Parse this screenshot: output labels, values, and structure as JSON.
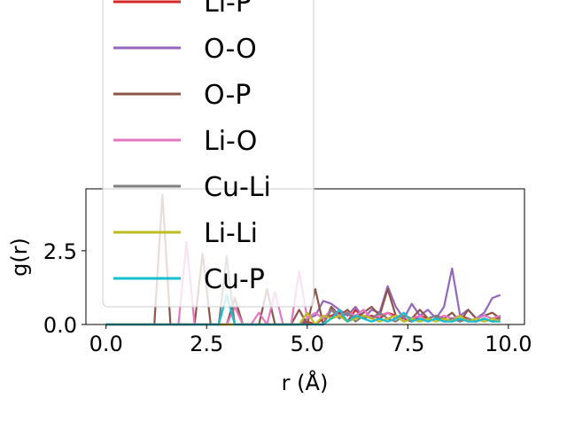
{
  "chart_data": {
    "type": "line",
    "title": "",
    "xlabel": "r (Å)",
    "ylabel": "g(r)",
    "xlim": [
      -0.5,
      10.4
    ],
    "ylim": [
      0,
      4.6
    ],
    "xticks": [
      0.0,
      2.5,
      5.0,
      7.5,
      10.0
    ],
    "xtick_labels": [
      "0.0",
      "2.5",
      "5.0",
      "7.5",
      "10.0"
    ],
    "yticks": [
      0.0,
      2.5
    ],
    "ytick_labels": [
      "0.0",
      "2.5"
    ],
    "grid": false,
    "legend_position": "upper-left",
    "x": [
      0,
      0.2,
      0.4,
      0.6,
      0.8,
      1.0,
      1.2,
      1.4,
      1.6,
      1.8,
      2.0,
      2.2,
      2.4,
      2.6,
      2.8,
      3.0,
      3.2,
      3.4,
      3.6,
      3.8,
      4.0,
      4.2,
      4.4,
      4.6,
      4.8,
      5.0,
      5.2,
      5.4,
      5.6,
      5.8,
      6.0,
      6.2,
      6.4,
      6.6,
      6.8,
      7.0,
      7.2,
      7.4,
      7.6,
      7.8,
      8.0,
      8.2,
      8.4,
      8.6,
      8.8,
      9.0,
      9.2,
      9.4,
      9.6,
      9.8
    ],
    "series": [
      {
        "name": "Li-P",
        "color": "#d62728",
        "values": [
          0,
          0,
          0,
          0,
          0,
          0,
          0,
          0,
          0,
          0,
          0,
          0,
          0,
          0,
          0,
          0,
          0,
          0,
          0,
          0,
          0,
          0,
          0,
          0,
          0,
          0.1,
          0,
          0.2,
          0.3,
          0.4,
          0.1,
          0.5,
          0.2,
          0.3,
          0.2,
          0.4,
          0.3,
          0.2,
          0.1,
          0.3,
          0.2,
          0.3,
          0.2,
          0.1,
          0.3,
          0.2,
          0.1,
          0.2,
          0.1,
          0.3
        ]
      },
      {
        "name": "O-O",
        "color": "#9467bd",
        "values": [
          0,
          0,
          0,
          0,
          0,
          0,
          0,
          0,
          0,
          0,
          0,
          0,
          0,
          0,
          0,
          0,
          0,
          0,
          0,
          0,
          0,
          0,
          0,
          0,
          0,
          0.2,
          0.3,
          0.8,
          0.7,
          0.5,
          0.3,
          0.6,
          0.2,
          0.5,
          0.4,
          1.3,
          0.6,
          0.2,
          0.7,
          0.3,
          0.5,
          0.2,
          0.6,
          1.9,
          0.3,
          0.5,
          0.2,
          0.4,
          0.9,
          1.0
        ]
      },
      {
        "name": "O-P",
        "color": "#8c564b",
        "values": [
          0,
          0,
          0,
          0,
          0,
          0,
          0,
          4.4,
          0,
          0,
          0,
          0,
          2.4,
          0,
          0,
          0,
          0.9,
          0,
          0,
          0,
          1.2,
          0,
          0,
          0,
          0.5,
          0,
          1.2,
          0,
          0.6,
          0.3,
          0.5,
          0.2,
          0.4,
          0.6,
          0.3,
          1.2,
          0.3,
          0.1,
          0.2,
          0.5,
          0.2,
          0.3,
          0.2,
          0.4,
          0.1,
          0.5,
          0.2,
          0.3,
          0.4,
          0.2
        ]
      },
      {
        "name": "Li-O",
        "color": "#e377c2",
        "values": [
          0,
          0,
          0,
          0,
          0,
          0,
          0,
          0,
          0,
          0,
          2.8,
          0,
          0,
          0,
          0,
          0,
          0.6,
          0,
          0,
          0.4,
          0,
          1.1,
          0,
          0,
          1.8,
          0.2,
          0.4,
          0.2,
          0.5,
          0.3,
          0.4,
          0.3,
          0.5,
          0.2,
          0.3,
          0.4,
          0.2,
          0.3,
          0.2,
          0.3,
          0.1,
          0.2,
          0.3,
          0.2,
          0.3,
          0.1,
          0.2,
          0.3,
          0.2,
          0.3
        ]
      },
      {
        "name": "Cu-Li",
        "color": "#7f7f7f",
        "values": [
          0,
          0,
          0,
          0,
          0,
          0,
          0,
          0,
          0,
          0,
          0,
          0,
          0,
          0,
          0,
          2.3,
          0,
          0,
          0,
          0,
          0,
          0,
          0,
          0,
          0,
          0,
          0,
          0,
          0.5,
          0.2,
          0.4,
          0.1,
          0.3,
          0.2,
          0.4,
          0.2,
          0.1,
          0.3,
          0.2,
          0.1,
          0.2,
          0.3,
          0.1,
          0.2,
          0.1,
          0.2,
          0.1,
          0.2,
          0.1,
          0.2
        ]
      },
      {
        "name": "Li-Li",
        "color": "#bcbd22",
        "values": [
          0,
          0,
          0,
          0,
          0,
          0,
          0,
          0,
          0,
          0,
          0,
          0,
          0,
          0,
          0,
          0,
          0,
          0,
          0,
          0,
          0,
          0,
          0,
          0,
          0,
          0.4,
          0,
          0.3,
          0.2,
          0.3,
          0.1,
          0.2,
          0.3,
          0.2,
          0.1,
          0.2,
          0.3,
          0.1,
          0.2,
          0.1,
          0.2,
          0.1,
          0.2,
          0.1,
          0.3,
          0.1,
          0.2,
          0.1,
          0.2,
          0.1
        ]
      },
      {
        "name": "Cu-P",
        "color": "#17becf",
        "values": [
          0,
          0,
          0,
          0,
          0,
          0,
          0,
          0,
          0,
          0,
          0,
          0,
          0,
          0,
          0,
          1.0,
          0,
          0,
          0,
          0,
          0,
          0,
          0,
          0,
          0,
          0,
          0,
          0,
          0.2,
          0.5,
          0.1,
          0.3,
          0.2,
          0.1,
          0.2,
          0.1,
          0.2,
          0.4,
          0.1,
          0.2,
          0.1,
          0.2,
          0.1,
          0.1,
          0.2,
          0.1,
          0.1,
          0.2,
          0.1,
          0.1
        ]
      }
    ]
  }
}
